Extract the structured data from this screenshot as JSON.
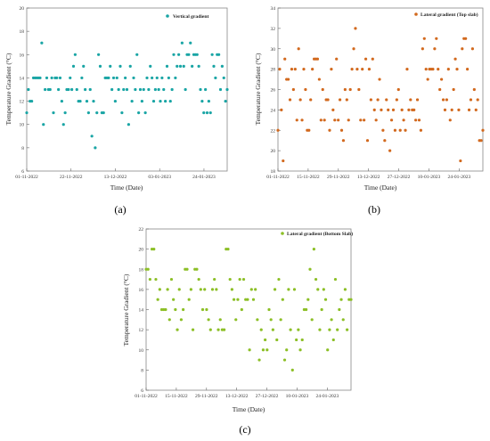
{
  "chart_data": [
    {
      "id": "a",
      "type": "scatter",
      "panel_label": "(a)",
      "legend": "Vertical gradient",
      "legend_position": "top-right",
      "xlabel": "Time (Date)",
      "ylabel": "Temperature Gradient (°C)",
      "color": "#1aa5a5",
      "x_ticks": [
        "01-11-2022",
        "22-11-2022",
        "13-12-2022",
        "03-01-2023",
        "24-01-2023"
      ],
      "xlim": [
        0,
        95
      ],
      "tick_days": [
        0,
        21,
        42,
        63,
        84
      ],
      "ylim": [
        6,
        20
      ],
      "y_ticks": [
        6,
        8,
        10,
        12,
        14,
        16,
        18,
        20
      ],
      "grid": false,
      "values": [
        11,
        13,
        12,
        12,
        14,
        14,
        14,
        14,
        14,
        17,
        10,
        13,
        14,
        13,
        13,
        14,
        11,
        14,
        14,
        13,
        14,
        12,
        10,
        11,
        13,
        13,
        14,
        13,
        15,
        16,
        13,
        12,
        12,
        14,
        15,
        13,
        12,
        11,
        13,
        9,
        12,
        8,
        11,
        16,
        15,
        11,
        11,
        14,
        14,
        14,
        15,
        13,
        14,
        12,
        14,
        13,
        15,
        11,
        13,
        14,
        13,
        10,
        15,
        12,
        14,
        13,
        16,
        11,
        13,
        12,
        13,
        11,
        14,
        13,
        15,
        14,
        12,
        13,
        14,
        13,
        12,
        14,
        13,
        12,
        15,
        14,
        12,
        13,
        16,
        14,
        15,
        16,
        15,
        17,
        15,
        13,
        16,
        16,
        17,
        15,
        16,
        16,
        16,
        15,
        13,
        12,
        11,
        13,
        11,
        12,
        11,
        16,
        15,
        14,
        16,
        16,
        13,
        15,
        14,
        12,
        13
      ]
    },
    {
      "id": "b",
      "type": "scatter",
      "panel_label": "(b)",
      "legend": "Lateral gradient (Top slab)",
      "legend_position": "top-right",
      "xlabel": "Time (Date)",
      "ylabel": "Temperature Gradient (°C)",
      "color": "#d2691e",
      "x_ticks": [
        "01-11-2022",
        "15-11-2022",
        "29-11-2022",
        "13-12-2022",
        "27-12-2022",
        "10-01-2023",
        "24-01-2023"
      ],
      "xlim": [
        0,
        95
      ],
      "tick_days": [
        0,
        14,
        28,
        42,
        56,
        70,
        84
      ],
      "ylim": [
        18,
        34
      ],
      "y_ticks": [
        18,
        20,
        22,
        24,
        26,
        28,
        30,
        32,
        34
      ],
      "grid": false,
      "values": [
        22,
        28,
        24,
        19,
        29,
        27,
        27,
        25,
        28,
        26,
        28,
        23,
        30,
        25,
        23,
        28,
        26,
        22,
        22,
        25,
        28,
        29,
        29,
        29,
        27,
        23,
        26,
        23,
        25,
        25,
        22,
        28,
        24,
        23,
        29,
        23,
        25,
        22,
        21,
        26,
        25,
        23,
        26,
        28,
        30,
        32,
        28,
        26,
        23,
        28,
        23,
        29,
        21,
        28,
        25,
        29,
        24,
        23,
        25,
        27,
        24,
        22,
        21,
        25,
        24,
        20,
        23,
        24,
        22,
        25,
        26,
        22,
        24,
        23,
        22,
        28,
        24,
        25,
        24,
        24,
        23,
        25,
        23,
        22,
        30,
        31,
        28,
        27,
        28,
        28,
        28,
        30,
        31,
        28,
        26,
        27,
        25,
        24,
        25,
        28,
        23,
        24,
        26,
        29,
        28,
        24,
        19,
        30,
        31,
        31,
        28,
        24,
        25,
        30,
        26,
        24,
        25,
        21,
        21,
        22
      ]
    },
    {
      "id": "c",
      "type": "scatter",
      "panel_label": "(c)",
      "legend": "Lateral gradient (Bottom Slab)",
      "legend_position": "top-right",
      "xlabel": "Time (Date)",
      "ylabel": "Temperature Gradient (°C)",
      "color": "#8cbf26",
      "x_ticks": [
        "01-11-2022",
        "15-11-2022",
        "29-11-2022",
        "13-12-2022",
        "27-12-2022",
        "10-01-2023",
        "24-01-2023"
      ],
      "xlim": [
        0,
        95
      ],
      "tick_days": [
        0,
        14,
        28,
        42,
        56,
        70,
        84
      ],
      "ylim": [
        6,
        22
      ],
      "y_ticks": [
        6,
        8,
        10,
        12,
        14,
        16,
        18,
        20,
        22
      ],
      "grid": false,
      "values": [
        18,
        18,
        17,
        20,
        20,
        17,
        15,
        16,
        14,
        14,
        14,
        16,
        13,
        17,
        15,
        14,
        12,
        16,
        13,
        14,
        18,
        18,
        15,
        16,
        12,
        18,
        18,
        17,
        16,
        14,
        16,
        14,
        13,
        12,
        16,
        17,
        16,
        12,
        13,
        12,
        12,
        20,
        20,
        17,
        16,
        15,
        13,
        15,
        17,
        14,
        17,
        15,
        15,
        10,
        16,
        15,
        16,
        13,
        9,
        12,
        10,
        11,
        10,
        14,
        13,
        12,
        16,
        11,
        17,
        13,
        15,
        9,
        10,
        16,
        12,
        8,
        16,
        11,
        12,
        10,
        11,
        14,
        14,
        15,
        18,
        13,
        20,
        17,
        16,
        12,
        14,
        16,
        15,
        10,
        12,
        13,
        11,
        17,
        12,
        14,
        15,
        13,
        16,
        12,
        15,
        15
      ]
    }
  ]
}
